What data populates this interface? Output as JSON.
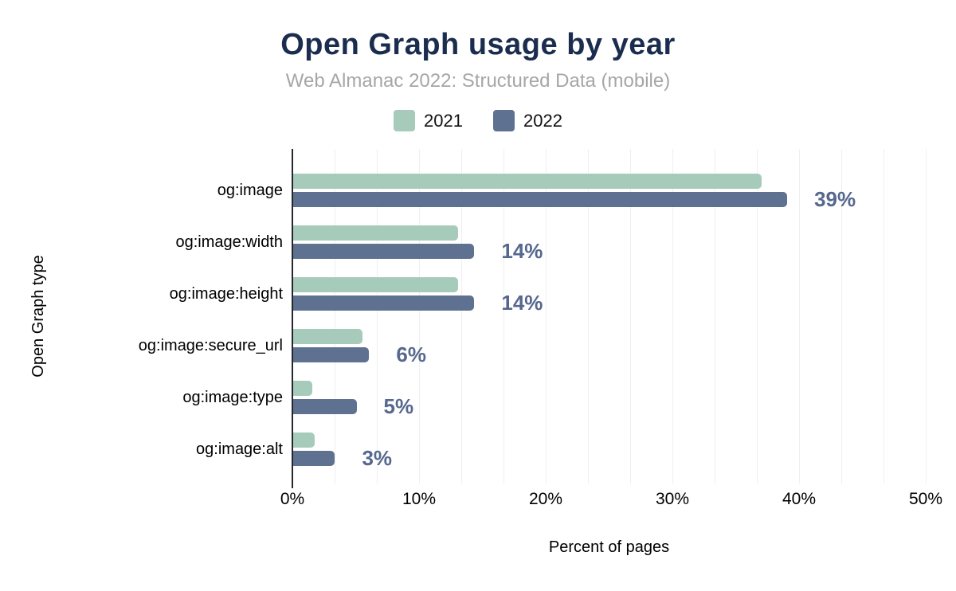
{
  "header": {
    "title": "Open Graph usage by year",
    "subtitle": "Web Almanac 2022: Structured Data (mobile)"
  },
  "chart_data": {
    "type": "bar",
    "orientation": "horizontal",
    "title": "Open Graph usage by year",
    "subtitle": "Web Almanac 2022: Structured Data (mobile)",
    "categories": [
      "og:image",
      "og:image:width",
      "og:image:height",
      "og:image:secure_url",
      "og:image:type",
      "og:image:alt"
    ],
    "series": [
      {
        "name": "2021",
        "color": "#a7cbba",
        "values": [
          37,
          13,
          13,
          5.5,
          1.5,
          1.7
        ]
      },
      {
        "name": "2022",
        "color": "#5e7190",
        "values": [
          39,
          14.3,
          14.3,
          6,
          5,
          3.3
        ]
      }
    ],
    "data_labels": [
      "39%",
      "14%",
      "14%",
      "6%",
      "5%",
      "3%"
    ],
    "xlabel": "Percent of pages",
    "ylabel": "Open Graph type",
    "xlim": [
      0,
      50
    ],
    "xticks": [
      "0%",
      "10%",
      "20%",
      "30%",
      "40%",
      "50%"
    ],
    "grid": "vertical minor gridlines every 3.33%",
    "legend_position": "top center"
  },
  "colors": {
    "title": "#1b2d4e",
    "subtitle": "#a6a6a6",
    "series_2021": "#a7cbba",
    "series_2022": "#5e7190",
    "data_label": "#56688e",
    "axis_line": "#24272e",
    "gridline": "#efefef",
    "background": "#ffffff"
  }
}
